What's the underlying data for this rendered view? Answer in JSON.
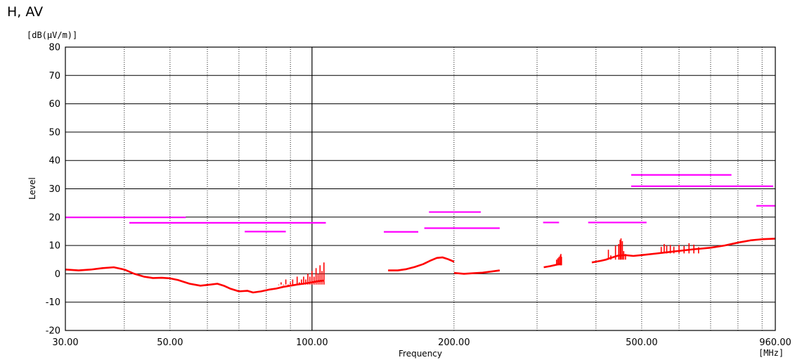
{
  "chart_data": {
    "type": "line",
    "title": "H, AV",
    "xlabel": "Frequency",
    "ylabel": "Level",
    "x_unit": "[MHz]",
    "y_unit": "[dB(µV/m)]",
    "x_scale": "log",
    "xlim": [
      30,
      960
    ],
    "ylim": [
      -20,
      80
    ],
    "grid": true,
    "y_ticks": [
      "80",
      "70",
      "60",
      "50",
      "40",
      "30",
      "20",
      "10",
      "0",
      "-10",
      "-20"
    ],
    "x_tick_labels": [
      {
        "value": 30,
        "label": "30.00"
      },
      {
        "value": 50,
        "label": "50.00"
      },
      {
        "value": 100,
        "label": "100.00"
      },
      {
        "value": 200,
        "label": "200.00"
      },
      {
        "value": 500,
        "label": "500.00"
      },
      {
        "value": 960,
        "label": "960.00"
      }
    ],
    "colors": {
      "measurement": "#ff0000",
      "limit": "#ff00ff"
    },
    "series": [
      {
        "type": "line",
        "segments": [
          [
            [
              30,
              1.5
            ],
            [
              32,
              1.2
            ],
            [
              34,
              1.5
            ],
            [
              36,
              2.0
            ],
            [
              38,
              2.3
            ],
            [
              40,
              1.5
            ],
            [
              42,
              0
            ],
            [
              44,
              -1
            ],
            [
              46,
              -1.5
            ],
            [
              48,
              -1.4
            ],
            [
              50,
              -1.6
            ],
            [
              52,
              -2.2
            ],
            [
              55,
              -3.5
            ],
            [
              58,
              -4.2
            ],
            [
              61,
              -3.8
            ],
            [
              63,
              -3.5
            ],
            [
              65,
              -4.2
            ],
            [
              67,
              -5.2
            ],
            [
              70,
              -6.2
            ],
            [
              73,
              -6.0
            ],
            [
              75,
              -6.6
            ],
            [
              78,
              -6.2
            ],
            [
              81,
              -5.6
            ],
            [
              84,
              -5.2
            ],
            [
              87,
              -4.6
            ],
            [
              90,
              -4.2
            ],
            [
              93,
              -3.8
            ],
            [
              96,
              -3.5
            ],
            [
              100,
              -3.0
            ],
            [
              103,
              -2.6
            ],
            [
              106,
              -2.4
            ]
          ],
          [
            [
              145,
              1.2
            ],
            [
              152,
              1.2
            ],
            [
              158,
              1.6
            ],
            [
              165,
              2.4
            ],
            [
              172,
              3.4
            ],
            [
              178,
              4.6
            ],
            [
              184,
              5.6
            ],
            [
              189,
              5.8
            ],
            [
              194,
              5.2
            ],
            [
              198,
              4.6
            ],
            [
              200,
              4.2
            ]
          ],
          [
            [
              200,
              0.3
            ],
            [
              210,
              0
            ],
            [
              220,
              0.2
            ],
            [
              230,
              0.4
            ],
            [
              240,
              0.8
            ],
            [
              250,
              1.2
            ]
          ],
          [
            [
              310,
              2.3
            ],
            [
              320,
              2.7
            ],
            [
              330,
              3.2
            ],
            [
              338,
              3.6
            ]
          ],
          [
            [
              392,
              4.0
            ],
            [
              410,
              4.6
            ],
            [
              420,
              5.0
            ],
            [
              430,
              5.6
            ],
            [
              445,
              6.4
            ],
            [
              460,
              6.6
            ],
            [
              480,
              6.3
            ],
            [
              500,
              6.6
            ],
            [
              540,
              7.2
            ],
            [
              580,
              7.8
            ],
            [
              640,
              8.6
            ],
            [
              700,
              9.2
            ],
            [
              750,
              10.0
            ],
            [
              800,
              11.0
            ],
            [
              850,
              11.8
            ],
            [
              900,
              12.2
            ],
            [
              960,
              12.4
            ]
          ]
        ]
      },
      {
        "type": "limit",
        "segments": [
          [
            [
              30,
              19.9
            ],
            [
              54,
              19.9
            ]
          ],
          [
            [
              41,
              18.0
            ],
            [
              107,
              18.0
            ]
          ],
          [
            [
              72,
              14.9
            ],
            [
              88,
              14.9
            ]
          ],
          [
            [
              142,
              14.8
            ],
            [
              168,
              14.8
            ]
          ],
          [
            [
              177,
              21.8
            ],
            [
              228,
              21.8
            ]
          ],
          [
            [
              173,
              16.1
            ],
            [
              250,
              16.1
            ]
          ],
          [
            [
              309,
              18.1
            ],
            [
              334,
              18.1
            ]
          ],
          [
            [
              385,
              18.1
            ],
            [
              512,
              18.1
            ]
          ],
          [
            [
              475,
              34.9
            ],
            [
              775,
              34.9
            ]
          ],
          [
            [
              475,
              30.9
            ],
            [
              950,
              30.9
            ]
          ],
          [
            [
              875,
              24.0
            ],
            [
              960,
              24.0
            ]
          ]
        ]
      }
    ],
    "spikes": [
      {
        "x": [
          85,
          86,
          87,
          88,
          89,
          90,
          91,
          92,
          93,
          94,
          95,
          96,
          97,
          98,
          99,
          100,
          101,
          102,
          103,
          104,
          105,
          106
        ],
        "low": -3.8,
        "high": [
          -4,
          -3,
          -4,
          -2,
          -4,
          -3,
          -2,
          -4,
          -1,
          -3,
          -2,
          -1,
          -2,
          0,
          -1,
          1,
          -1,
          2,
          0,
          3,
          1,
          4
        ]
      },
      {
        "x": [
          330,
          332,
          334,
          336,
          337,
          338
        ],
        "low": 3.0,
        "high": [
          5,
          5.5,
          6,
          6.5,
          7,
          6
        ]
      },
      {
        "x": [
          425,
          430,
          440,
          447,
          450,
          452,
          455,
          458,
          462
        ],
        "low": 5,
        "high": [
          8.5,
          6.5,
          10,
          10.5,
          12,
          12.5,
          11.5,
          8,
          7
        ]
      },
      {
        "x": [
          550,
          558,
          565,
          575,
          585,
          600,
          615,
          630,
          645,
          660
        ],
        "low": 7.2,
        "high": [
          9.5,
          10.5,
          10,
          10.2,
          9.6,
          10.2,
          9.8,
          10.8,
          10.3,
          9.4
        ]
      }
    ]
  }
}
